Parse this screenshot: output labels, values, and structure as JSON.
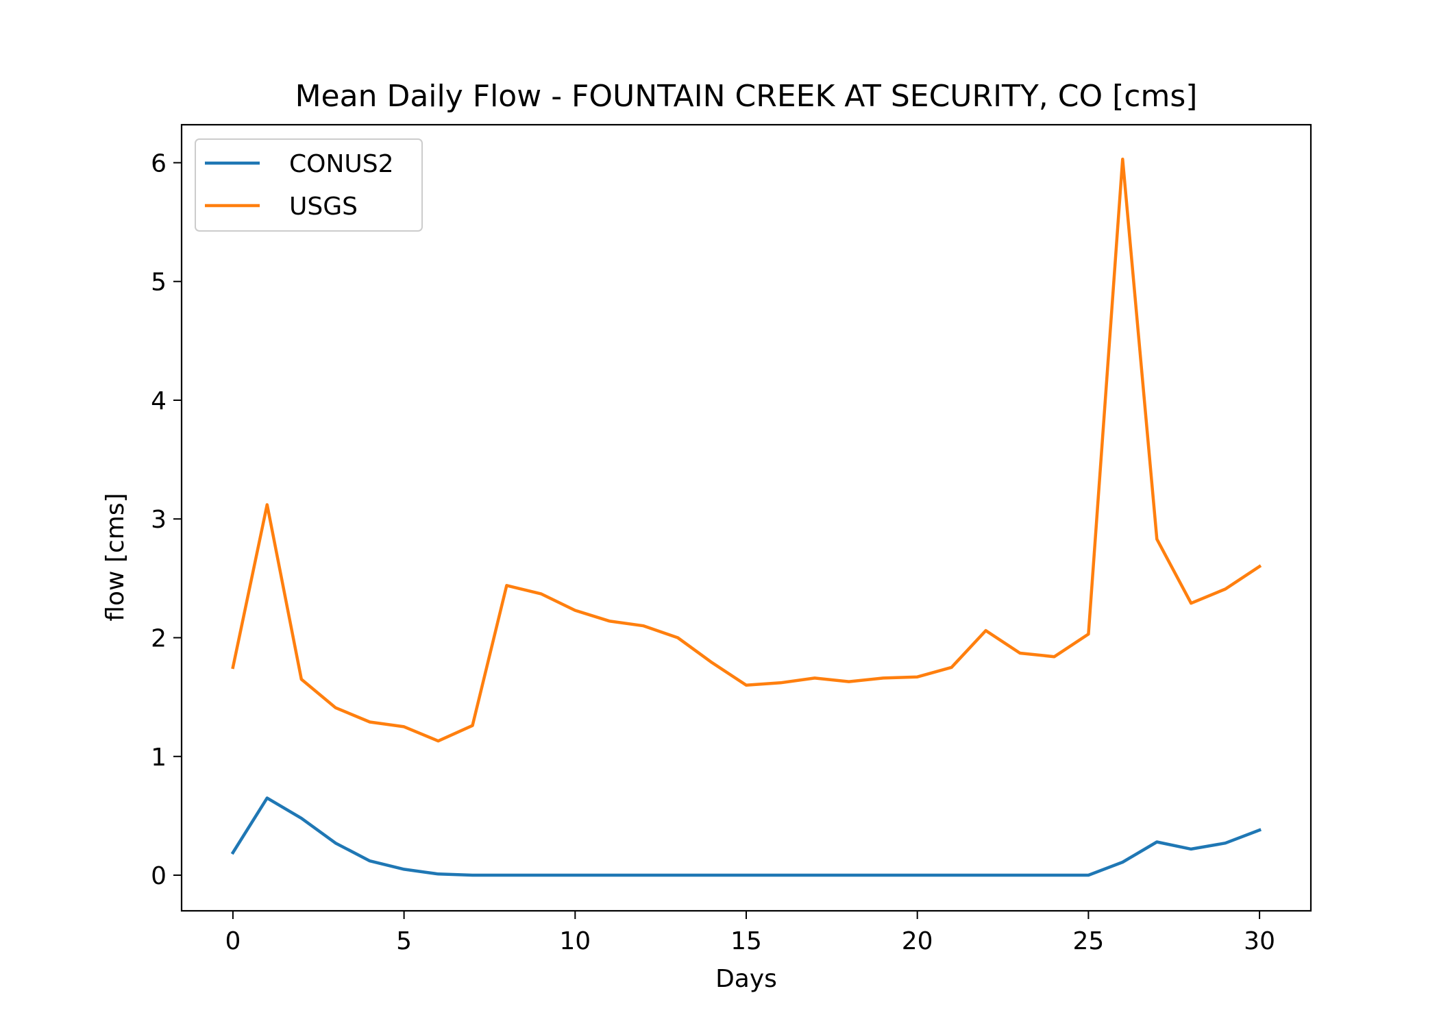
{
  "chart_data": {
    "type": "line",
    "title": "Mean Daily Flow - FOUNTAIN CREEK AT SECURITY, CO [cms]",
    "xlabel": "Days",
    "ylabel": "flow [cms]",
    "xlim": [
      -1.5,
      31.5
    ],
    "ylim": [
      -0.3,
      6.32
    ],
    "xticks": [
      0,
      5,
      10,
      15,
      20,
      25,
      30
    ],
    "yticks": [
      0,
      1,
      2,
      3,
      4,
      5,
      6
    ],
    "grid": false,
    "legend_position": "upper-left",
    "x": [
      0,
      1,
      2,
      3,
      4,
      5,
      6,
      7,
      8,
      9,
      10,
      11,
      12,
      13,
      14,
      15,
      16,
      17,
      18,
      19,
      20,
      21,
      22,
      23,
      24,
      25,
      26,
      27,
      28,
      29,
      30
    ],
    "series": [
      {
        "name": "CONUS2",
        "color": "#1f77b4",
        "values": [
          0.19,
          0.65,
          0.48,
          0.27,
          0.12,
          0.05,
          0.01,
          0.0,
          0.0,
          0.0,
          0.0,
          0.0,
          0.0,
          0.0,
          0.0,
          0.0,
          0.0,
          0.0,
          0.0,
          0.0,
          0.0,
          0.0,
          0.0,
          0.0,
          0.0,
          0.0,
          0.11,
          0.28,
          0.22,
          0.27,
          0.38
        ]
      },
      {
        "name": "USGS",
        "color": "#ff7f0e",
        "values": [
          1.75,
          3.12,
          1.65,
          1.41,
          1.29,
          1.25,
          1.13,
          1.26,
          2.44,
          2.37,
          2.23,
          2.14,
          2.1,
          2.0,
          1.79,
          1.6,
          1.62,
          1.66,
          1.63,
          1.66,
          1.67,
          1.75,
          2.06,
          1.87,
          1.84,
          2.03,
          6.03,
          2.83,
          2.29,
          2.41,
          2.6
        ]
      }
    ]
  }
}
